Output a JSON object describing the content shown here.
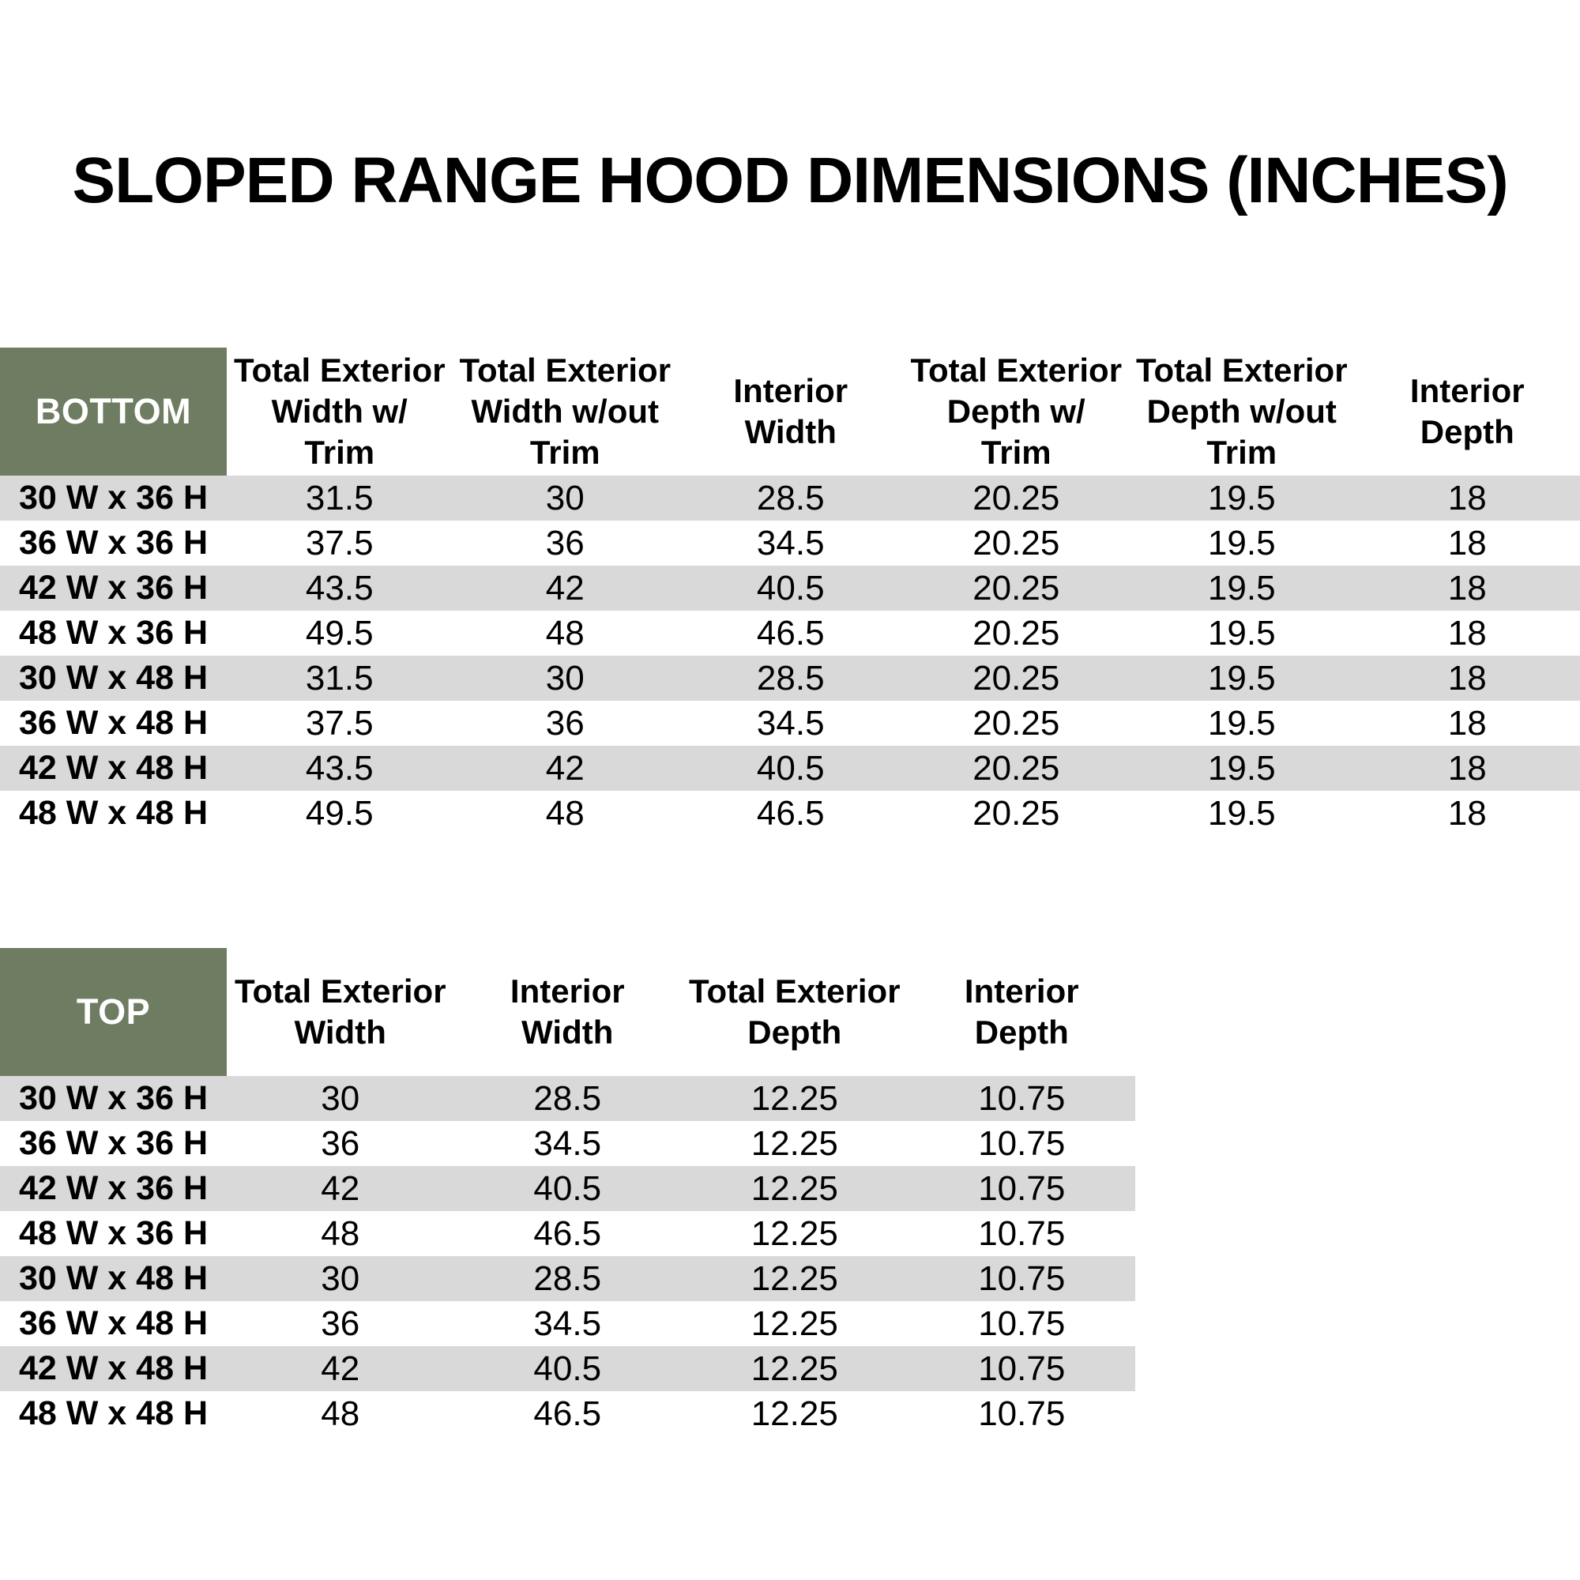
{
  "title": "SLOPED RANGE HOOD DIMENSIONS (INCHES)",
  "colors": {
    "header_green": "#6E7C61",
    "stripe_gray": "#D9D9D9",
    "header_text_white": "#FFFFFF",
    "body_text_black": "#000000"
  },
  "bottom_table": {
    "corner_label": "BOTTOM",
    "columns": [
      "Total Exterior\nWidth w/\nTrim",
      "Total Exterior\nWidth w/out\nTrim",
      "Interior\nWidth",
      "Total Exterior\nDepth w/\nTrim",
      "Total Exterior\nDepth w/out\nTrim",
      "Interior\nDepth"
    ],
    "rows": [
      {
        "label": "30 W x 36 H",
        "values": [
          "31.5",
          "30",
          "28.5",
          "20.25",
          "19.5",
          "18"
        ]
      },
      {
        "label": "36 W x 36 H",
        "values": [
          "37.5",
          "36",
          "34.5",
          "20.25",
          "19.5",
          "18"
        ]
      },
      {
        "label": "42 W x 36 H",
        "values": [
          "43.5",
          "42",
          "40.5",
          "20.25",
          "19.5",
          "18"
        ]
      },
      {
        "label": "48 W x 36 H",
        "values": [
          "49.5",
          "48",
          "46.5",
          "20.25",
          "19.5",
          "18"
        ]
      },
      {
        "label": "30 W x 48 H",
        "values": [
          "31.5",
          "30",
          "28.5",
          "20.25",
          "19.5",
          "18"
        ]
      },
      {
        "label": "36 W x 48 H",
        "values": [
          "37.5",
          "36",
          "34.5",
          "20.25",
          "19.5",
          "18"
        ]
      },
      {
        "label": "42 W x 48 H",
        "values": [
          "43.5",
          "42",
          "40.5",
          "20.25",
          "19.5",
          "18"
        ]
      },
      {
        "label": "48 W x 48 H",
        "values": [
          "49.5",
          "48",
          "46.5",
          "20.25",
          "19.5",
          "18"
        ]
      }
    ]
  },
  "top_table": {
    "corner_label": "TOP",
    "columns": [
      "Total Exterior\nWidth",
      "Interior\nWidth",
      "Total Exterior\nDepth",
      "Interior\nDepth"
    ],
    "rows": [
      {
        "label": "30 W x 36 H",
        "values": [
          "30",
          "28.5",
          "12.25",
          "10.75"
        ]
      },
      {
        "label": "36 W x 36 H",
        "values": [
          "36",
          "34.5",
          "12.25",
          "10.75"
        ]
      },
      {
        "label": "42 W x 36 H",
        "values": [
          "42",
          "40.5",
          "12.25",
          "10.75"
        ]
      },
      {
        "label": "48 W x 36 H",
        "values": [
          "48",
          "46.5",
          "12.25",
          "10.75"
        ]
      },
      {
        "label": "30 W x 48 H",
        "values": [
          "30",
          "28.5",
          "12.25",
          "10.75"
        ]
      },
      {
        "label": "36 W x 48 H",
        "values": [
          "36",
          "34.5",
          "12.25",
          "10.75"
        ]
      },
      {
        "label": "42 W x 48 H",
        "values": [
          "42",
          "40.5",
          "12.25",
          "10.75"
        ]
      },
      {
        "label": "48 W x 48 H",
        "values": [
          "48",
          "46.5",
          "12.25",
          "10.75"
        ]
      }
    ]
  }
}
